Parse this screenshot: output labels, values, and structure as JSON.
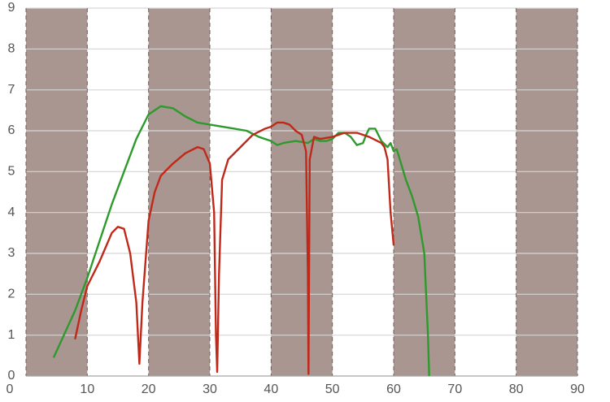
{
  "chart_data": {
    "type": "line",
    "xlim": [
      0,
      90
    ],
    "xticks": [
      0,
      10,
      20,
      30,
      40,
      50,
      60,
      70,
      80,
      90
    ],
    "ylim": [
      0,
      9
    ],
    "yticks": [
      0,
      1,
      2,
      3,
      4,
      5,
      6,
      7,
      8,
      9
    ],
    "grid": true,
    "band_color": "#a99690",
    "band_edge_color": "#6f5f5a",
    "series": [
      {
        "color": "#2e9a2e",
        "x": [
          4.5,
          8,
          10,
          12,
          14,
          16,
          18,
          20,
          22,
          24,
          26,
          28,
          30,
          32,
          34,
          36,
          38,
          40,
          41,
          42,
          44,
          46,
          47,
          48,
          49,
          50,
          51,
          52,
          53,
          54,
          55,
          55.5,
          56,
          57,
          57.5,
          58,
          59,
          59.5,
          60,
          60.5,
          61,
          62,
          63,
          64,
          65,
          65.3,
          65.6,
          65.8
        ],
        "values": [
          0.45,
          1.6,
          2.4,
          3.3,
          4.2,
          5.0,
          5.8,
          6.4,
          6.6,
          6.55,
          6.35,
          6.2,
          6.15,
          6.1,
          6.05,
          6.0,
          5.85,
          5.75,
          5.65,
          5.7,
          5.75,
          5.7,
          5.8,
          5.75,
          5.75,
          5.8,
          5.95,
          5.95,
          5.85,
          5.65,
          5.7,
          5.9,
          6.05,
          6.05,
          5.9,
          5.75,
          5.6,
          5.7,
          5.5,
          5.55,
          5.3,
          4.8,
          4.4,
          3.9,
          3.0,
          2.0,
          1.0,
          0
        ]
      },
      {
        "color": "#c0291a",
        "x": [
          8,
          9,
          10,
          12,
          14,
          15,
          16,
          17,
          18,
          18.5,
          19,
          20,
          21,
          22,
          24,
          26,
          28,
          29,
          30,
          30.7,
          31,
          31.2,
          31.5,
          32,
          33,
          35,
          37,
          39,
          40,
          41,
          42,
          43,
          44,
          45,
          45.7,
          46,
          46.1,
          46.3,
          47,
          48,
          50,
          52,
          54,
          56,
          58,
          58.5,
          59,
          59.5,
          60
        ],
        "values": [
          0.9,
          1.6,
          2.2,
          2.8,
          3.5,
          3.65,
          3.6,
          3.0,
          1.8,
          0.3,
          1.8,
          3.8,
          4.5,
          4.9,
          5.2,
          5.45,
          5.6,
          5.55,
          5.2,
          4.0,
          1.0,
          0.1,
          2.5,
          4.8,
          5.3,
          5.6,
          5.9,
          6.05,
          6.1,
          6.2,
          6.2,
          6.15,
          6.0,
          5.9,
          5.5,
          2.5,
          0.05,
          5.3,
          5.85,
          5.8,
          5.85,
          5.95,
          5.95,
          5.85,
          5.7,
          5.6,
          5.3,
          4.0,
          3.2
        ]
      }
    ]
  }
}
